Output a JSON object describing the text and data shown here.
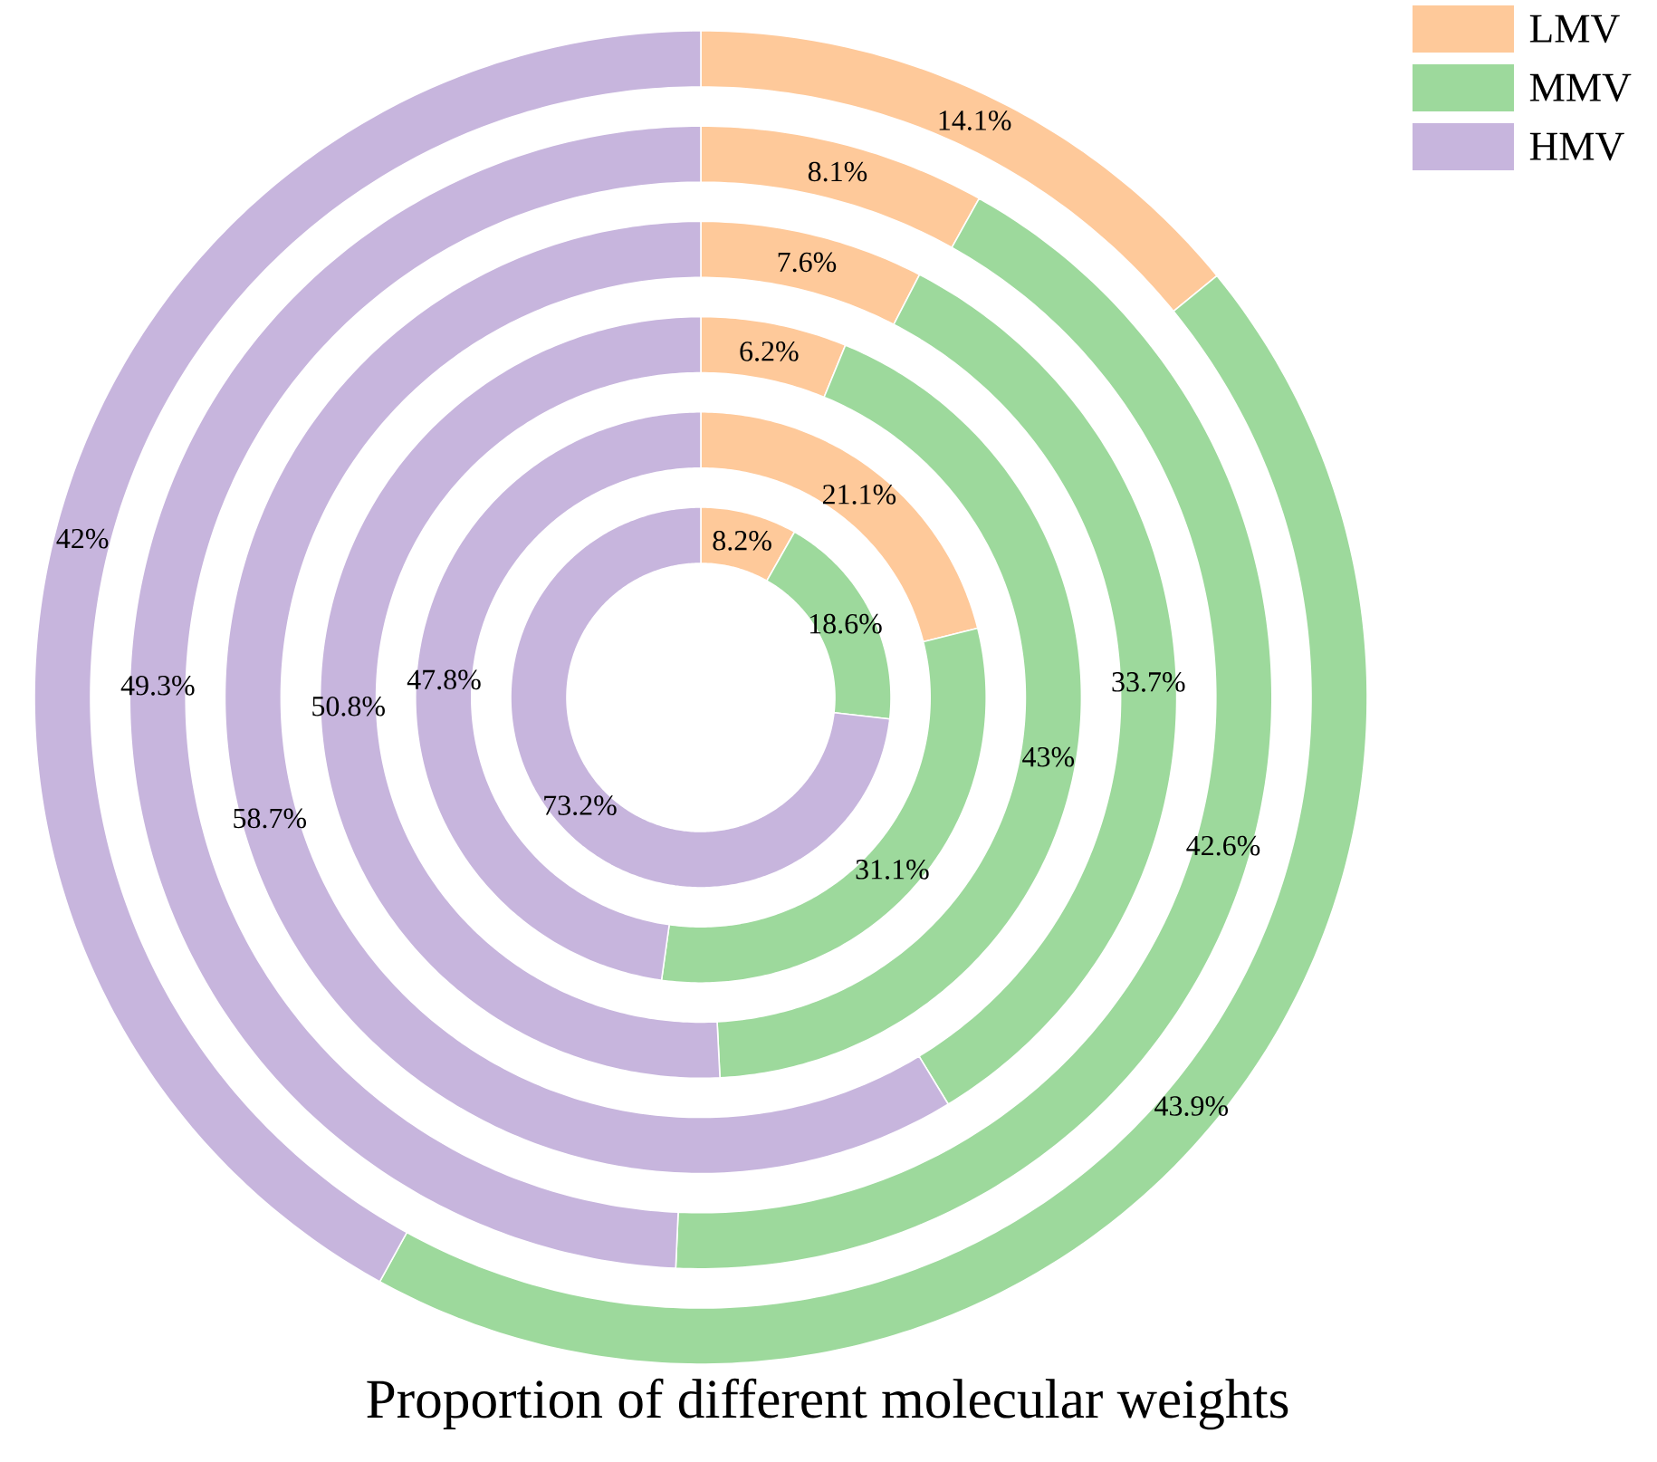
{
  "chart_data": {
    "type": "donut",
    "title": "Proportion of different molecular weights",
    "categories": [
      "LMV",
      "MMV",
      "HMV"
    ],
    "colors": [
      "#fec99a",
      "#9dd99c",
      "#c7b5dd"
    ],
    "legend": "top right",
    "series": [
      {
        "values": [
          8.2,
          18.6,
          73.2
        ],
        "value_labels": [
          "8.2%",
          "18.6%",
          "73.2%"
        ]
      },
      {
        "values": [
          21.1,
          31.1,
          47.8
        ],
        "value_labels": [
          "21.1%",
          "31.1%",
          "47.8%"
        ]
      },
      {
        "values": [
          6.2,
          43,
          50.8
        ],
        "value_labels": [
          "6.2%",
          "43%",
          "50.8%"
        ]
      },
      {
        "values": [
          7.6,
          33.7,
          58.7
        ],
        "value_labels": [
          "7.6%",
          "33.7%",
          "58.7%"
        ]
      },
      {
        "values": [
          8.1,
          42.6,
          49.3
        ],
        "value_labels": [
          "8.1%",
          "42.6%",
          "49.3%"
        ]
      },
      {
        "values": [
          14.1,
          43.9,
          42
        ],
        "value_labels": [
          "14.1%",
          "43.9%",
          "42%"
        ]
      }
    ]
  }
}
